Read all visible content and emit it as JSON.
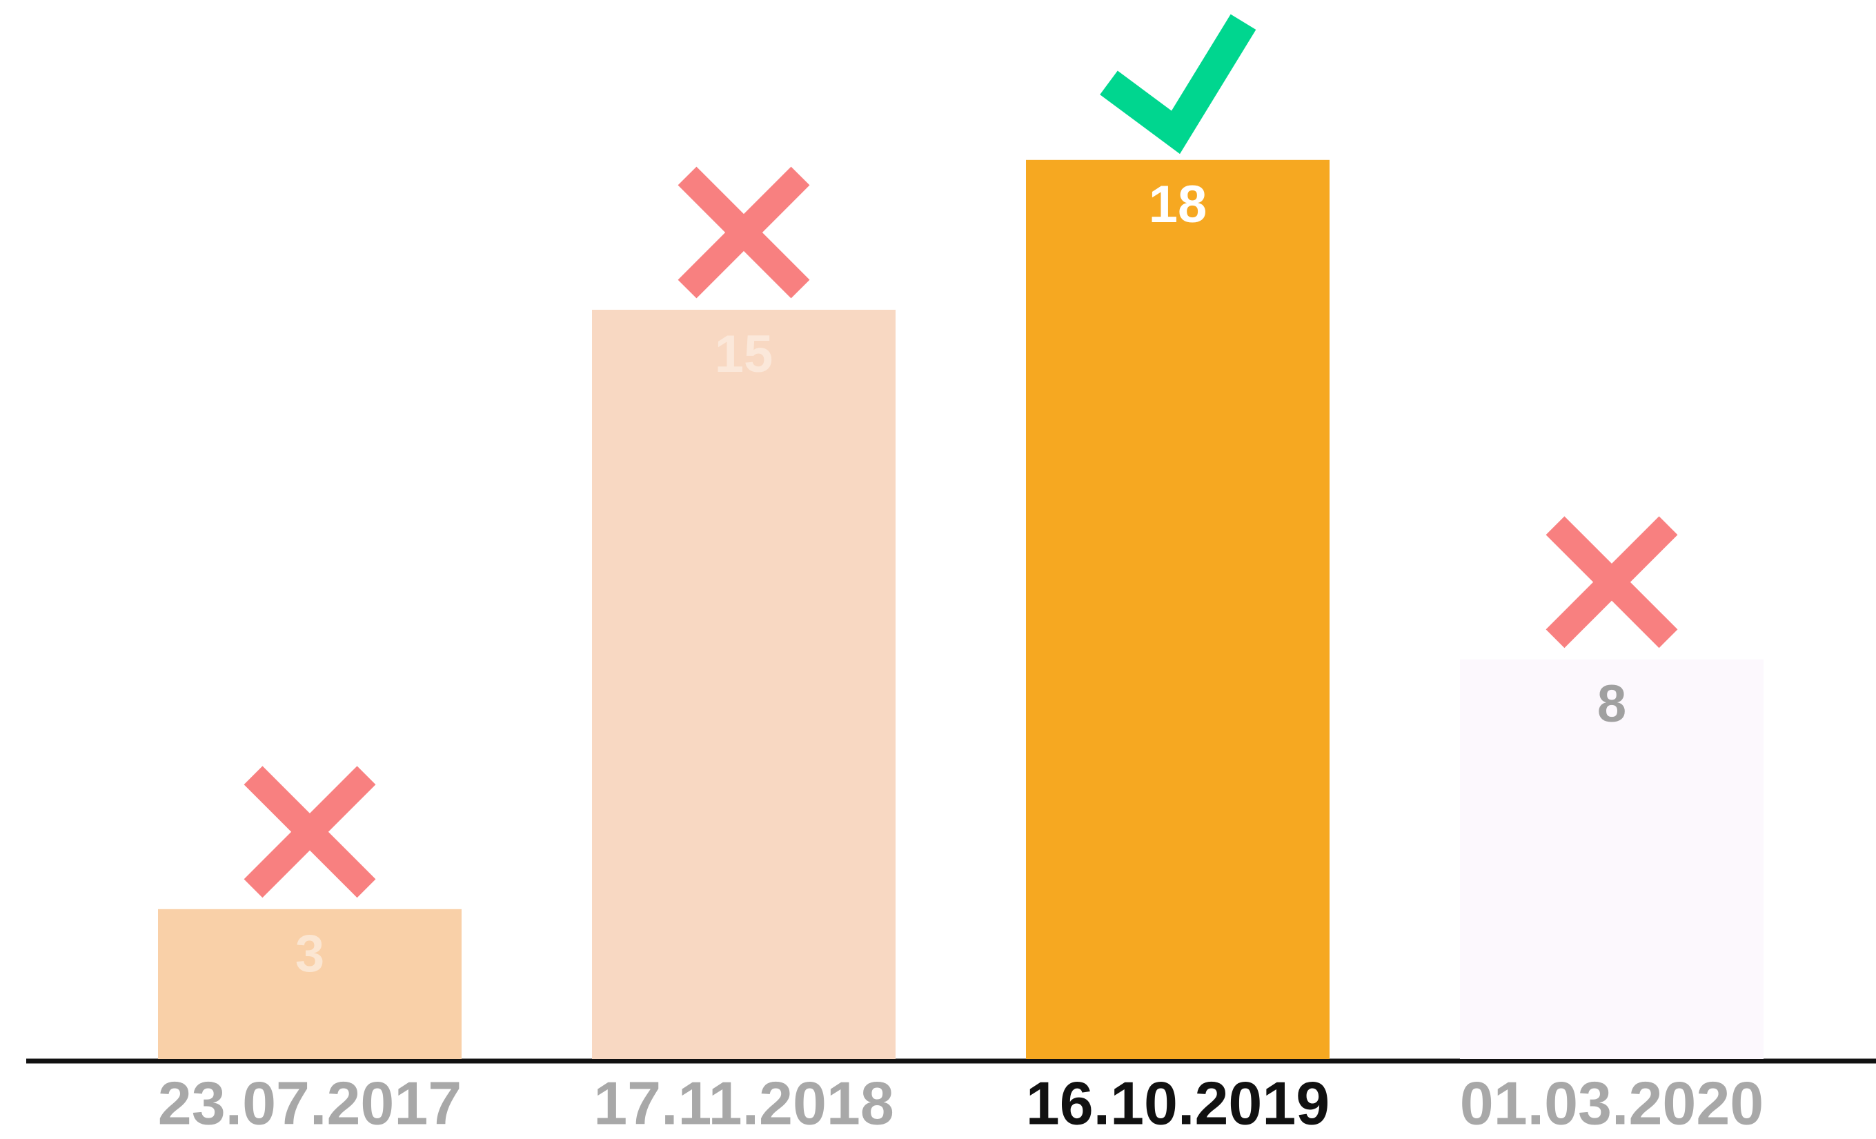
{
  "chart_data": {
    "type": "bar",
    "categories": [
      "23.07.2017",
      "17.11.2018",
      "16.10.2019",
      "01.03.2020"
    ],
    "values": [
      3,
      15,
      18,
      8
    ],
    "colors": [
      "#f9d0a8",
      "#f8d8c2",
      "#f6a821",
      "#fcf8fd"
    ],
    "value_label_colors": [
      "#fbe6d2",
      "#fbe8da",
      "#ffffff",
      "#a0a0a0"
    ]
  }
}
